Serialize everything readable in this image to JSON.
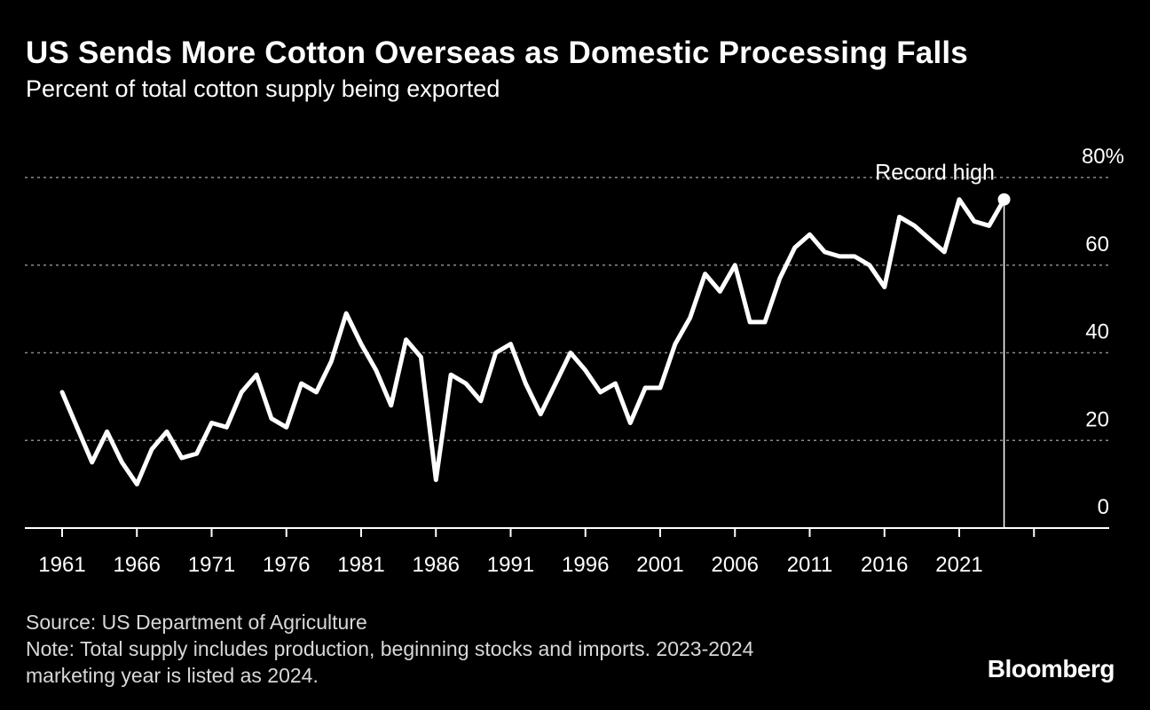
{
  "header": {
    "title": "US Sends More Cotton Overseas as Domestic Processing Falls",
    "subtitle": "Percent of total cotton supply being exported"
  },
  "footer": {
    "source": "Source: US Department of Agriculture",
    "note_line1": "Note: Total supply includes production, beginning stocks and imports. 2023-2024",
    "note_line2": "marketing year is listed as 2024.",
    "brand": "Bloomberg"
  },
  "colors": {
    "background": "#000000",
    "line": "#ffffff",
    "grid": "#8a8a8a"
  },
  "chart_data": {
    "type": "line",
    "title": "US Sends More Cotton Overseas as Domestic Processing Falls",
    "subtitle": "Percent of total cotton supply being exported",
    "xlabel": "",
    "ylabel": "",
    "ylim": [
      0,
      80
    ],
    "xlim": [
      1959.5,
      2028
    ],
    "yticks": [
      0,
      20,
      40,
      60,
      80
    ],
    "ytick_labels": [
      "0",
      "20",
      "40",
      "60",
      "80%"
    ],
    "xticks": [
      1961,
      1966,
      1971,
      1976,
      1981,
      1986,
      1991,
      1996,
      2001,
      2006,
      2011,
      2016,
      2021
    ],
    "xtick_labels": [
      "1961",
      "1966",
      "1971",
      "1976",
      "1981",
      "1986",
      "1991",
      "1996",
      "2001",
      "2006",
      "2011",
      "2016",
      "2021"
    ],
    "grid": true,
    "grid_style": "dotted horizontal",
    "y_axis_side": "right",
    "legend": "none",
    "series": [
      {
        "x": [
          1961,
          1962,
          1963,
          1964,
          1965,
          1966,
          1967,
          1968,
          1969,
          1970,
          1971,
          1972,
          1973,
          1974,
          1975,
          1976,
          1977,
          1978,
          1979,
          1980,
          1981,
          1982,
          1983,
          1984,
          1985,
          1986,
          1987,
          1988,
          1989,
          1990,
          1991,
          1992,
          1993,
          1994,
          1995,
          1996,
          1997,
          1998,
          1999,
          2000,
          2001,
          2002,
          2003,
          2004,
          2005,
          2006,
          2007,
          2008,
          2009,
          2010,
          2011,
          2012,
          2013,
          2014,
          2015,
          2016,
          2017,
          2018,
          2019,
          2020,
          2021,
          2022,
          2023,
          2024
        ],
        "values": [
          31,
          23,
          15,
          22,
          15,
          10,
          18,
          22,
          16,
          17,
          24,
          23,
          31,
          35,
          25,
          23,
          33,
          31,
          38,
          49,
          42,
          36,
          28,
          43,
          39,
          11,
          35,
          33,
          29,
          40,
          42,
          33,
          26,
          33,
          40,
          36,
          31,
          33,
          24,
          32,
          32,
          42,
          48,
          58,
          54,
          60,
          47,
          47,
          57,
          64,
          67,
          63,
          62,
          62,
          60,
          55,
          71,
          69,
          66,
          63,
          75,
          70,
          69,
          75
        ]
      }
    ],
    "annotations": [
      {
        "text": "Record high",
        "x": 2024,
        "y": 75
      }
    ]
  }
}
